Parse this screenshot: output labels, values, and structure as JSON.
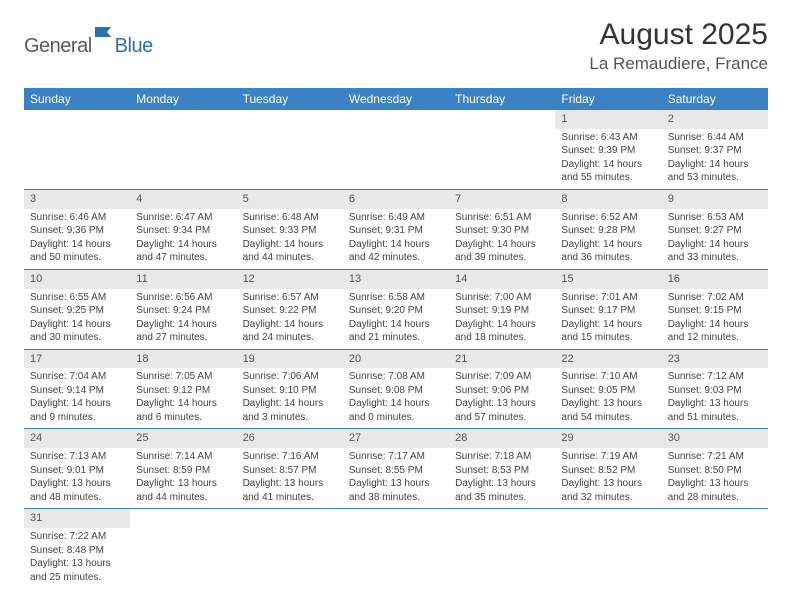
{
  "logo": {
    "part1": "General",
    "part2": "Blue"
  },
  "title": {
    "month_year": "August 2025",
    "location": "La Remaudiere, France"
  },
  "weekdays": [
    "Sunday",
    "Monday",
    "Tuesday",
    "Wednesday",
    "Thursday",
    "Friday",
    "Saturday"
  ],
  "colors": {
    "header_bg": "#3b82c4",
    "daynum_bg": "#e8e8e8",
    "row_border": "#3b82c4",
    "logo_gray": "#5a5a5a",
    "logo_blue": "#2b6fb5"
  },
  "weeks": [
    [
      null,
      null,
      null,
      null,
      null,
      {
        "num": "1",
        "rise": "Sunrise: 6:43 AM",
        "set": "Sunset: 9:39 PM",
        "d1": "Daylight: 14 hours",
        "d2": "and 55 minutes."
      },
      {
        "num": "2",
        "rise": "Sunrise: 6:44 AM",
        "set": "Sunset: 9:37 PM",
        "d1": "Daylight: 14 hours",
        "d2": "and 53 minutes."
      }
    ],
    [
      {
        "num": "3",
        "rise": "Sunrise: 6:46 AM",
        "set": "Sunset: 9:36 PM",
        "d1": "Daylight: 14 hours",
        "d2": "and 50 minutes."
      },
      {
        "num": "4",
        "rise": "Sunrise: 6:47 AM",
        "set": "Sunset: 9:34 PM",
        "d1": "Daylight: 14 hours",
        "d2": "and 47 minutes."
      },
      {
        "num": "5",
        "rise": "Sunrise: 6:48 AM",
        "set": "Sunset: 9:33 PM",
        "d1": "Daylight: 14 hours",
        "d2": "and 44 minutes."
      },
      {
        "num": "6",
        "rise": "Sunrise: 6:49 AM",
        "set": "Sunset: 9:31 PM",
        "d1": "Daylight: 14 hours",
        "d2": "and 42 minutes."
      },
      {
        "num": "7",
        "rise": "Sunrise: 6:51 AM",
        "set": "Sunset: 9:30 PM",
        "d1": "Daylight: 14 hours",
        "d2": "and 39 minutes."
      },
      {
        "num": "8",
        "rise": "Sunrise: 6:52 AM",
        "set": "Sunset: 9:28 PM",
        "d1": "Daylight: 14 hours",
        "d2": "and 36 minutes."
      },
      {
        "num": "9",
        "rise": "Sunrise: 6:53 AM",
        "set": "Sunset: 9:27 PM",
        "d1": "Daylight: 14 hours",
        "d2": "and 33 minutes."
      }
    ],
    [
      {
        "num": "10",
        "rise": "Sunrise: 6:55 AM",
        "set": "Sunset: 9:25 PM",
        "d1": "Daylight: 14 hours",
        "d2": "and 30 minutes."
      },
      {
        "num": "11",
        "rise": "Sunrise: 6:56 AM",
        "set": "Sunset: 9:24 PM",
        "d1": "Daylight: 14 hours",
        "d2": "and 27 minutes."
      },
      {
        "num": "12",
        "rise": "Sunrise: 6:57 AM",
        "set": "Sunset: 9:22 PM",
        "d1": "Daylight: 14 hours",
        "d2": "and 24 minutes."
      },
      {
        "num": "13",
        "rise": "Sunrise: 6:58 AM",
        "set": "Sunset: 9:20 PM",
        "d1": "Daylight: 14 hours",
        "d2": "and 21 minutes."
      },
      {
        "num": "14",
        "rise": "Sunrise: 7:00 AM",
        "set": "Sunset: 9:19 PM",
        "d1": "Daylight: 14 hours",
        "d2": "and 18 minutes."
      },
      {
        "num": "15",
        "rise": "Sunrise: 7:01 AM",
        "set": "Sunset: 9:17 PM",
        "d1": "Daylight: 14 hours",
        "d2": "and 15 minutes."
      },
      {
        "num": "16",
        "rise": "Sunrise: 7:02 AM",
        "set": "Sunset: 9:15 PM",
        "d1": "Daylight: 14 hours",
        "d2": "and 12 minutes."
      }
    ],
    [
      {
        "num": "17",
        "rise": "Sunrise: 7:04 AM",
        "set": "Sunset: 9:14 PM",
        "d1": "Daylight: 14 hours",
        "d2": "and 9 minutes."
      },
      {
        "num": "18",
        "rise": "Sunrise: 7:05 AM",
        "set": "Sunset: 9:12 PM",
        "d1": "Daylight: 14 hours",
        "d2": "and 6 minutes."
      },
      {
        "num": "19",
        "rise": "Sunrise: 7:06 AM",
        "set": "Sunset: 9:10 PM",
        "d1": "Daylight: 14 hours",
        "d2": "and 3 minutes."
      },
      {
        "num": "20",
        "rise": "Sunrise: 7:08 AM",
        "set": "Sunset: 9:08 PM",
        "d1": "Daylight: 14 hours",
        "d2": "and 0 minutes."
      },
      {
        "num": "21",
        "rise": "Sunrise: 7:09 AM",
        "set": "Sunset: 9:06 PM",
        "d1": "Daylight: 13 hours",
        "d2": "and 57 minutes."
      },
      {
        "num": "22",
        "rise": "Sunrise: 7:10 AM",
        "set": "Sunset: 9:05 PM",
        "d1": "Daylight: 13 hours",
        "d2": "and 54 minutes."
      },
      {
        "num": "23",
        "rise": "Sunrise: 7:12 AM",
        "set": "Sunset: 9:03 PM",
        "d1": "Daylight: 13 hours",
        "d2": "and 51 minutes."
      }
    ],
    [
      {
        "num": "24",
        "rise": "Sunrise: 7:13 AM",
        "set": "Sunset: 9:01 PM",
        "d1": "Daylight: 13 hours",
        "d2": "and 48 minutes."
      },
      {
        "num": "25",
        "rise": "Sunrise: 7:14 AM",
        "set": "Sunset: 8:59 PM",
        "d1": "Daylight: 13 hours",
        "d2": "and 44 minutes."
      },
      {
        "num": "26",
        "rise": "Sunrise: 7:16 AM",
        "set": "Sunset: 8:57 PM",
        "d1": "Daylight: 13 hours",
        "d2": "and 41 minutes."
      },
      {
        "num": "27",
        "rise": "Sunrise: 7:17 AM",
        "set": "Sunset: 8:55 PM",
        "d1": "Daylight: 13 hours",
        "d2": "and 38 minutes."
      },
      {
        "num": "28",
        "rise": "Sunrise: 7:18 AM",
        "set": "Sunset: 8:53 PM",
        "d1": "Daylight: 13 hours",
        "d2": "and 35 minutes."
      },
      {
        "num": "29",
        "rise": "Sunrise: 7:19 AM",
        "set": "Sunset: 8:52 PM",
        "d1": "Daylight: 13 hours",
        "d2": "and 32 minutes."
      },
      {
        "num": "30",
        "rise": "Sunrise: 7:21 AM",
        "set": "Sunset: 8:50 PM",
        "d1": "Daylight: 13 hours",
        "d2": "and 28 minutes."
      }
    ],
    [
      {
        "num": "31",
        "rise": "Sunrise: 7:22 AM",
        "set": "Sunset: 8:48 PM",
        "d1": "Daylight: 13 hours",
        "d2": "and 25 minutes."
      },
      null,
      null,
      null,
      null,
      null,
      null
    ]
  ]
}
